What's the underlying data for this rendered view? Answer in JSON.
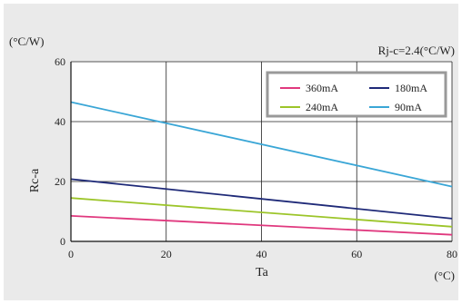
{
  "chart_data": {
    "type": "line",
    "title": "",
    "xlabel": "Ta",
    "ylabel": "Rc-a",
    "x_unit": "(°C)",
    "y_unit": "(°C/W)",
    "annotation": "Rj-c=2.4(°C/W)",
    "xlim": [
      0,
      80
    ],
    "ylim": [
      0,
      60
    ],
    "xticks": [
      "0",
      "20",
      "40",
      "60",
      "80"
    ],
    "yticks": [
      "0",
      "20",
      "40",
      "60"
    ],
    "grid": true,
    "legend_position": "top-right",
    "series": [
      {
        "name": "360mA",
        "color": "#e0387e",
        "x": [
          0,
          80
        ],
        "y": [
          8.5,
          2.2
        ]
      },
      {
        "name": "180mA",
        "color": "#1f2a78",
        "x": [
          0,
          80
        ],
        "y": [
          20.8,
          7.6
        ]
      },
      {
        "name": "240mA",
        "color": "#9cc529",
        "x": [
          0,
          80
        ],
        "y": [
          14.5,
          4.9
        ]
      },
      {
        "name": "90mA",
        "color": "#3aa6d6",
        "x": [
          0,
          80
        ],
        "y": [
          46.5,
          18.3
        ]
      }
    ]
  }
}
